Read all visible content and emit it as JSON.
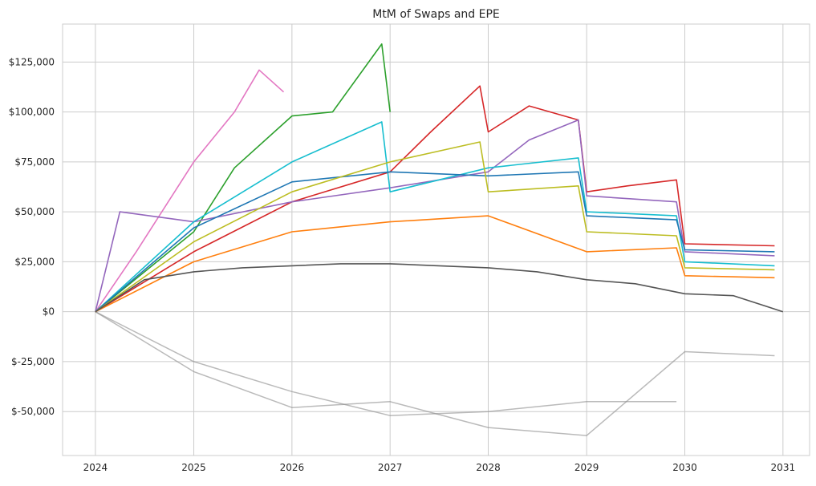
{
  "chart_data": {
    "type": "line",
    "title": "MtM of Swaps and EPE",
    "xlabel": "",
    "ylabel": "",
    "x_axis": {
      "scale": "date",
      "range": [
        "2023-09-01",
        "2031-04-10"
      ],
      "ticks": [
        {
          "value": "2024-01-01",
          "label": "2024"
        },
        {
          "value": "2025-01-01",
          "label": "2025"
        },
        {
          "value": "2026-01-01",
          "label": "2026"
        },
        {
          "value": "2027-01-01",
          "label": "2027"
        },
        {
          "value": "2028-01-01",
          "label": "2028"
        },
        {
          "value": "2029-01-01",
          "label": "2029"
        },
        {
          "value": "2030-01-01",
          "label": "2030"
        },
        {
          "value": "2031-01-01",
          "label": "2031"
        }
      ]
    },
    "y_axis": {
      "range": [
        -72000,
        144000
      ],
      "ticks": [
        {
          "value": -50000,
          "label": "$-50,000"
        },
        {
          "value": -25000,
          "label": "$-25,000"
        },
        {
          "value": 0,
          "label": "$0"
        },
        {
          "value": 25000,
          "label": "$25,000"
        },
        {
          "value": 50000,
          "label": "$50,000"
        },
        {
          "value": 75000,
          "label": "$75,000"
        },
        {
          "value": 100000,
          "label": "$100,000"
        },
        {
          "value": 125000,
          "label": "$125,000"
        }
      ]
    },
    "grid": true,
    "legend": "none",
    "series_style": {
      "positive_exposure_palette": [
        "#1f77b4",
        "#ff7f0e",
        "#2ca02c",
        "#d62728",
        "#9467bd",
        "#8c564b",
        "#e377c2",
        "#7f7f7f",
        "#bcbd22",
        "#17becf"
      ],
      "negative_mtm_color": "#8c8c8c",
      "epe_color": "#555555"
    },
    "series": [
      {
        "x": [
          "2024-01-01",
          "2024-06-01",
          "2025-01-01",
          "2025-06-01",
          "2025-09-01",
          "2025-12-01"
        ],
        "y": [
          0,
          30000,
          75000,
          100000,
          121000,
          110000
        ],
        "color": "#e377c2"
      },
      {
        "x": [
          "2024-01-01",
          "2025-01-01",
          "2025-06-01",
          "2026-01-01",
          "2026-06-01",
          "2026-12-01",
          "2027-01-01"
        ],
        "y": [
          0,
          40000,
          72000,
          98000,
          100000,
          134000,
          100000
        ],
        "color": "#2ca02c"
      },
      {
        "x": [
          "2024-01-01",
          "2025-01-01",
          "2026-01-01",
          "2027-01-01",
          "2027-06-01",
          "2027-12-01",
          "2028-01-01",
          "2028-06-01",
          "2028-12-01",
          "2029-01-01",
          "2029-06-01",
          "2029-12-01",
          "2030-01-01",
          "2030-12-01"
        ],
        "y": [
          0,
          30000,
          55000,
          70000,
          90000,
          113000,
          90000,
          103000,
          96000,
          60000,
          63000,
          66000,
          34000,
          33000
        ],
        "color": "#d62728"
      },
      {
        "x": [
          "2024-01-01",
          "2024-04-01",
          "2025-01-01",
          "2026-01-01",
          "2027-01-01",
          "2028-01-01",
          "2028-06-01",
          "2028-12-01",
          "2029-01-01",
          "2029-12-01",
          "2030-01-01",
          "2030-12-01"
        ],
        "y": [
          0,
          50000,
          45000,
          55000,
          62000,
          70000,
          86000,
          96000,
          58000,
          55000,
          30000,
          28000
        ],
        "color": "#9467bd"
      },
      {
        "x": [
          "2024-01-01",
          "2025-01-01",
          "2026-01-01",
          "2026-12-01",
          "2027-01-01",
          "2028-01-01",
          "2028-12-01",
          "2029-01-01",
          "2029-12-01",
          "2030-01-01",
          "2030-12-01"
        ],
        "y": [
          0,
          45000,
          75000,
          95000,
          60000,
          72000,
          77000,
          50000,
          48000,
          25000,
          23000
        ],
        "color": "#17becf"
      },
      {
        "x": [
          "2024-01-01",
          "2025-01-01",
          "2026-01-01",
          "2027-01-01",
          "2028-01-01",
          "2028-12-01",
          "2029-01-01",
          "2029-12-01",
          "2030-01-01",
          "2030-12-01"
        ],
        "y": [
          0,
          42000,
          65000,
          70000,
          68000,
          70000,
          48000,
          46000,
          31000,
          30000
        ],
        "color": "#1f77b4"
      },
      {
        "x": [
          "2024-01-01",
          "2025-01-01",
          "2026-01-01",
          "2027-01-01",
          "2027-12-01",
          "2028-01-01",
          "2028-12-01",
          "2029-01-01",
          "2029-12-01",
          "2030-01-01",
          "2030-12-01"
        ],
        "y": [
          0,
          35000,
          60000,
          75000,
          85000,
          60000,
          63000,
          40000,
          38000,
          22000,
          21000
        ],
        "color": "#bcbd22"
      },
      {
        "x": [
          "2024-01-01",
          "2025-01-01",
          "2026-01-01",
          "2027-01-01",
          "2028-01-01",
          "2029-01-01",
          "2029-12-01",
          "2030-01-01",
          "2030-12-01"
        ],
        "y": [
          0,
          25000,
          40000,
          45000,
          48000,
          30000,
          32000,
          18000,
          17000
        ],
        "color": "#ff7f0e"
      },
      {
        "x": [
          "2024-01-01",
          "2025-01-01",
          "2026-01-01",
          "2027-01-01",
          "2028-01-01",
          "2029-01-01",
          "2030-01-01",
          "2030-12-01"
        ],
        "y": [
          0,
          -30000,
          -48000,
          -45000,
          -58000,
          -62000,
          -20000,
          -22000
        ],
        "color": "#8c8c8c"
      },
      {
        "x": [
          "2024-01-01",
          "2025-01-01",
          "2026-01-01",
          "2027-01-01",
          "2028-01-01",
          "2029-01-01",
          "2029-12-01"
        ],
        "y": [
          0,
          -25000,
          -40000,
          -52000,
          -50000,
          -45000,
          -45000
        ],
        "color": "#8c8c8c"
      },
      {
        "x": [
          "2024-01-01",
          "2024-07-01",
          "2025-01-01",
          "2025-07-01",
          "2026-01-01",
          "2026-07-01",
          "2027-01-01",
          "2027-07-01",
          "2028-01-01",
          "2028-07-01",
          "2029-01-01",
          "2029-07-01",
          "2030-01-01",
          "2030-07-01",
          "2031-01-01"
        ],
        "y": [
          0,
          16000,
          20000,
          22000,
          23000,
          24000,
          24000,
          23000,
          22000,
          20000,
          16000,
          14000,
          9000,
          8000,
          0
        ],
        "color": "#555555"
      }
    ]
  }
}
